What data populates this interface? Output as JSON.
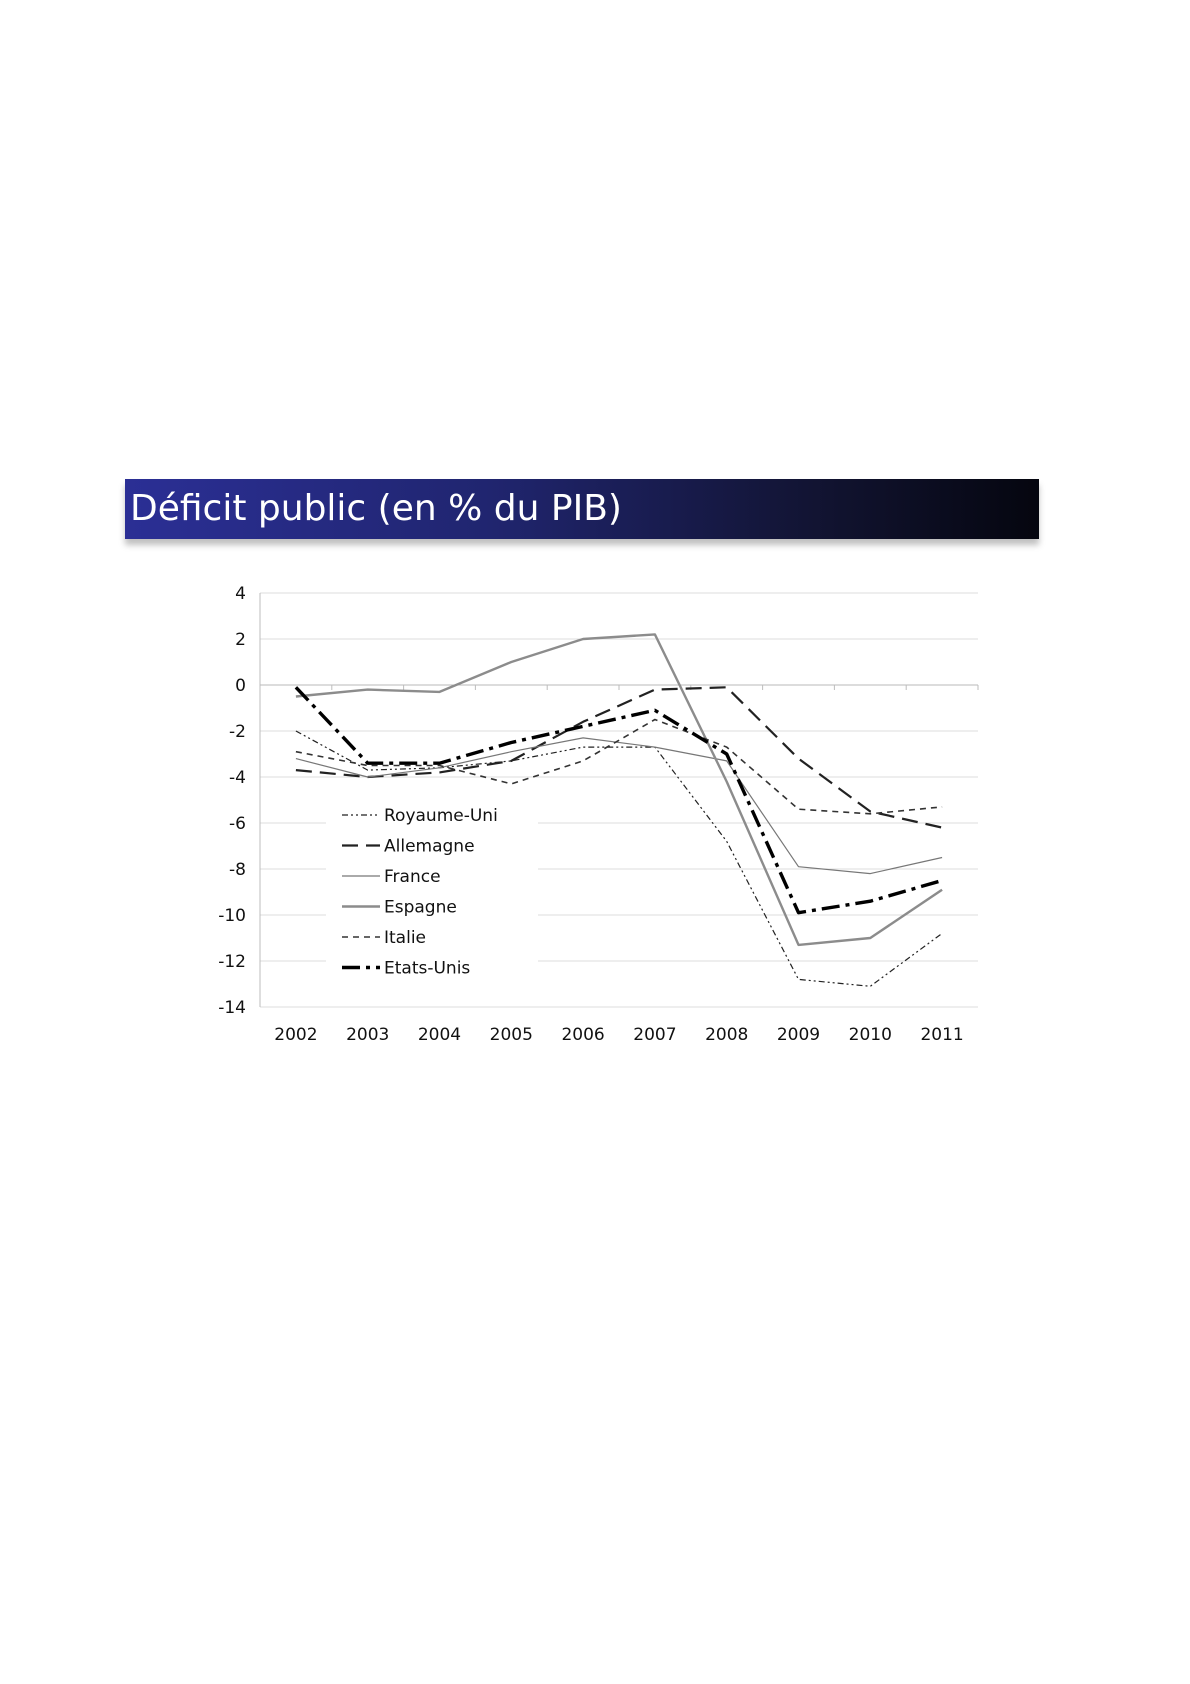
{
  "title": "Déficit public (en % du PIB)",
  "chart_data": {
    "type": "line",
    "title": "",
    "xlabel": "",
    "ylabel": "",
    "x": [
      "2002",
      "2003",
      "2004",
      "2005",
      "2006",
      "2007",
      "2008",
      "2009",
      "2010",
      "2011"
    ],
    "ylim": [
      -14,
      4
    ],
    "yticks": [
      "4",
      "2",
      "0",
      "-2",
      "-4",
      "-6",
      "-8",
      "-10",
      "-12",
      "-14"
    ],
    "grid": "horizontal",
    "legend_position": "bottom-left",
    "series": [
      {
        "name": "Royaume-Uni",
        "values": [
          -2.0,
          -3.7,
          -3.6,
          -3.3,
          -2.7,
          -2.7,
          -6.8,
          -12.8,
          -13.1,
          -10.8
        ],
        "color": "#222222",
        "dash": "dashdotdot",
        "width": 1.2
      },
      {
        "name": "Allemagne",
        "values": [
          -3.7,
          -4.0,
          -3.8,
          -3.3,
          -1.6,
          -0.2,
          -0.1,
          -3.2,
          -5.5,
          -6.2
        ],
        "color": "#222222",
        "dash": "longdash",
        "width": 2.2
      },
      {
        "name": "France",
        "values": [
          -3.2,
          -4.0,
          -3.6,
          -2.9,
          -2.3,
          -2.7,
          -3.3,
          -7.9,
          -8.2,
          -7.5
        ],
        "color": "#777777",
        "dash": "solid",
        "width": 1.2
      },
      {
        "name": "Espagne",
        "values": [
          -0.5,
          -0.2,
          -0.3,
          1.0,
          2.0,
          2.2,
          -4.2,
          -11.3,
          -11.0,
          -8.9
        ],
        "color": "#8c8c8c",
        "dash": "solid",
        "width": 2.4
      },
      {
        "name": "Italie",
        "values": [
          -2.9,
          -3.5,
          -3.5,
          -4.3,
          -3.3,
          -1.5,
          -2.7,
          -5.4,
          -5.6,
          -5.3
        ],
        "color": "#333333",
        "dash": "shortdash",
        "width": 1.6
      },
      {
        "name": "Etats-Unis",
        "values": [
          -0.1,
          -3.4,
          -3.4,
          -2.5,
          -1.8,
          -1.1,
          -3.0,
          -9.9,
          -9.4,
          -8.5
        ],
        "color": "#000000",
        "dash": "dashdot",
        "width": 3.4
      }
    ]
  }
}
